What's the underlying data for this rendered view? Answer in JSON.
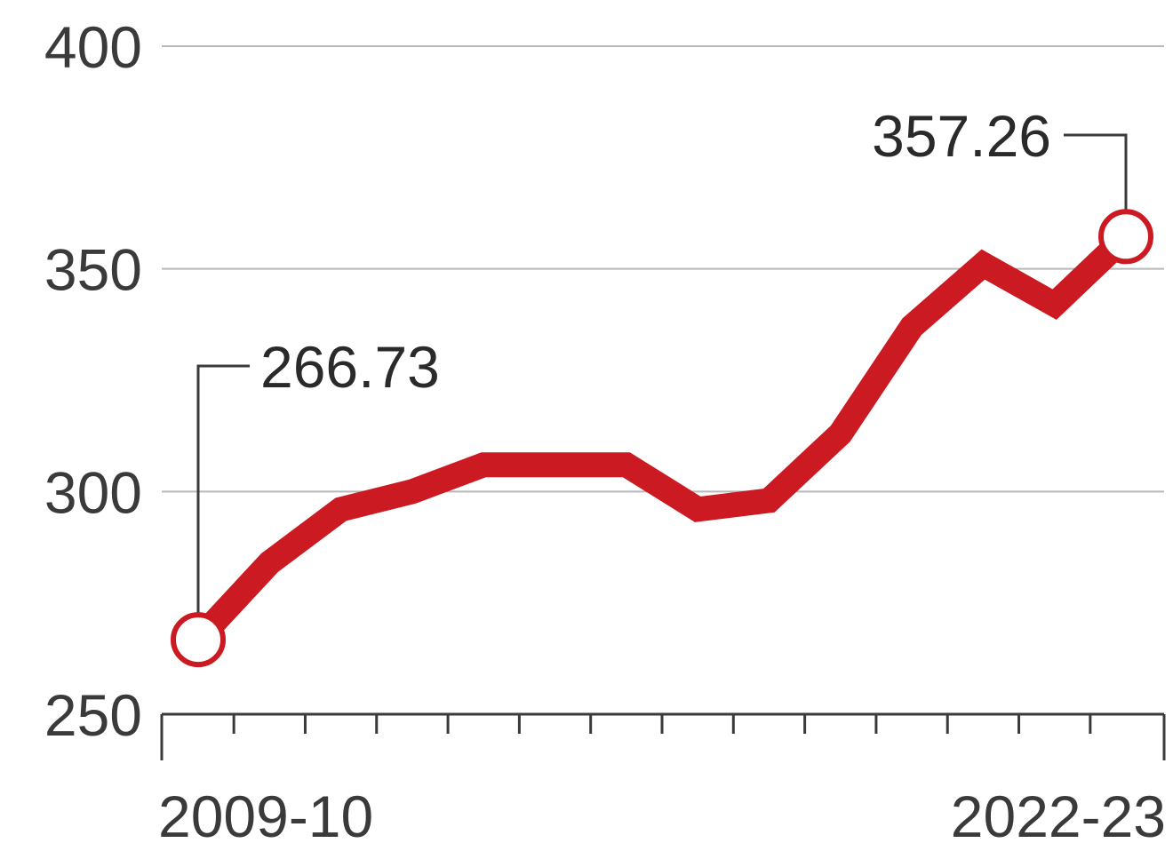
{
  "chart_data": {
    "type": "line",
    "title": "",
    "xlabel": "",
    "ylabel": "",
    "ylim": [
      250,
      400
    ],
    "yticks": [
      400,
      350,
      300,
      250
    ],
    "x_tick_labels": [
      "2009-10",
      "2022-23"
    ],
    "categories": [
      "2009-10",
      "2010-11",
      "2011-12",
      "2012-13",
      "2013-14",
      "2014-15",
      "2015-16",
      "2016-17",
      "2017-18",
      "2018-19",
      "2019-20",
      "2020-21",
      "2021-22",
      "2022-23"
    ],
    "series": [
      {
        "values": [
          266.73,
          284,
          296,
          300,
          306,
          306,
          306,
          296,
          298,
          313,
          337,
          351,
          342,
          357.26
        ],
        "color": "#cc1a22"
      }
    ],
    "annotations": [
      {
        "label": "266.73",
        "category": "2009-10",
        "value": 266.73
      },
      {
        "label": "357.26",
        "category": "2022-23",
        "value": 357.26
      }
    ],
    "grid": true,
    "legend": "none"
  }
}
